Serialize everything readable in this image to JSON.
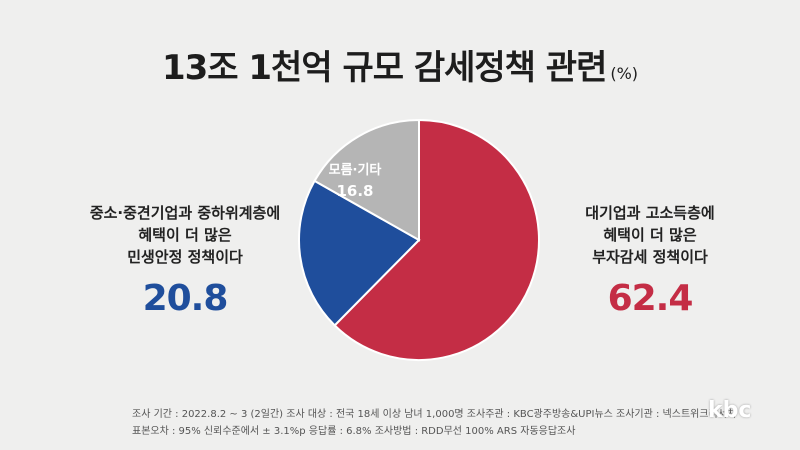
{
  "title": "13조 1천억 규모 감세정책 관련",
  "unit": "(%)",
  "chart_data": {
    "type": "pie",
    "title": "13조 1천억 규모 감세정책 관련 (%)",
    "slices": [
      {
        "label": "대기업과 고소득층에 혜택이 더 많은 부자감세 정책이다",
        "value": 62.4,
        "color": "#c42d45"
      },
      {
        "label": "중소·중견기업과 중하위계층에 혜택이 더 많은 민생안정 정책이다",
        "value": 20.8,
        "color": "#1f4e9c"
      },
      {
        "label": "모름·기타",
        "value": 16.8,
        "color": "#b5b5b5"
      }
    ]
  },
  "left_label": {
    "lines": [
      "중소·중견기업과 중하위계층에",
      "혜택이 더 많은",
      "민생안정 정책이다"
    ],
    "value": "20.8",
    "color": "#1f4e9c"
  },
  "right_label": {
    "lines": [
      "대기업과 고소득층에",
      "혜택이 더 많은",
      "부자감세 정책이다"
    ],
    "value": "62.4",
    "color": "#c42d45"
  },
  "inner_label": {
    "name": "모름·기타",
    "value": "16.8"
  },
  "footer": {
    "line1": "조사 기간 : 2022.8.2 ~ 3 (2일간)   조사 대상 : 전국 18세 이상 남녀 1,000명   조사주관 : KBC광주방송&UPI뉴스   조사기관 : 넥스트위크리서치",
    "line2": "표본오차 : 95% 신뢰수준에서 ± 3.1%p   응답률 : 6.8%   조사방법 : RDD무선 100% ARS 자동응답조사"
  },
  "logo": "kbc"
}
